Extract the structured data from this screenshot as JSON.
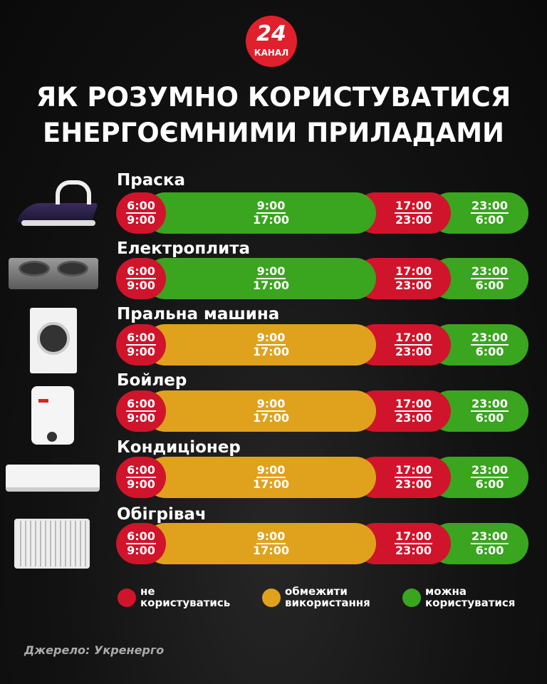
{
  "logo": {
    "number": "24",
    "text": "КАНАЛ"
  },
  "title": [
    "ЯК РОЗУМНО КОРИСТУВАТИСЯ",
    "ЕНЕРГОЄМНИМИ ПРИЛАДАМИ"
  ],
  "colors": {
    "red": "#d0142b",
    "amber": "#e0a21c",
    "green": "#3aa51f"
  },
  "rows": [
    {
      "name": "Праска",
      "icon": "iron",
      "segments": [
        {
          "from": "6:00",
          "to": "9:00",
          "status": "red"
        },
        {
          "from": "9:00",
          "to": "17:00",
          "status": "green"
        },
        {
          "from": "17:00",
          "to": "23:00",
          "status": "red"
        },
        {
          "from": "23:00",
          "to": "6:00",
          "status": "green"
        }
      ]
    },
    {
      "name": "Електроплита",
      "icon": "electric-stove",
      "segments": [
        {
          "from": "6:00",
          "to": "9:00",
          "status": "red"
        },
        {
          "from": "9:00",
          "to": "17:00",
          "status": "green"
        },
        {
          "from": "17:00",
          "to": "23:00",
          "status": "red"
        },
        {
          "from": "23:00",
          "to": "6:00",
          "status": "green"
        }
      ]
    },
    {
      "name": "Пральна машина",
      "icon": "washing-machine",
      "segments": [
        {
          "from": "6:00",
          "to": "9:00",
          "status": "red"
        },
        {
          "from": "9:00",
          "to": "17:00",
          "status": "amber"
        },
        {
          "from": "17:00",
          "to": "23:00",
          "status": "red"
        },
        {
          "from": "23:00",
          "to": "6:00",
          "status": "green"
        }
      ]
    },
    {
      "name": "Бойлер",
      "icon": "boiler",
      "segments": [
        {
          "from": "6:00",
          "to": "9:00",
          "status": "red"
        },
        {
          "from": "9:00",
          "to": "17:00",
          "status": "amber"
        },
        {
          "from": "17:00",
          "to": "23:00",
          "status": "red"
        },
        {
          "from": "23:00",
          "to": "6:00",
          "status": "green"
        }
      ]
    },
    {
      "name": "Кондиціонер",
      "icon": "air-conditioner",
      "segments": [
        {
          "from": "6:00",
          "to": "9:00",
          "status": "red"
        },
        {
          "from": "9:00",
          "to": "17:00",
          "status": "amber"
        },
        {
          "from": "17:00",
          "to": "23:00",
          "status": "red"
        },
        {
          "from": "23:00",
          "to": "6:00",
          "status": "green"
        }
      ]
    },
    {
      "name": "Обігрівач",
      "icon": "heater",
      "segments": [
        {
          "from": "6:00",
          "to": "9:00",
          "status": "red"
        },
        {
          "from": "9:00",
          "to": "17:00",
          "status": "amber"
        },
        {
          "from": "17:00",
          "to": "23:00",
          "status": "red"
        },
        {
          "from": "23:00",
          "to": "6:00",
          "status": "green"
        }
      ]
    }
  ],
  "legend": [
    {
      "status": "red",
      "line1": "не",
      "line2": "користуватись"
    },
    {
      "status": "amber",
      "line1": "обмежити",
      "line2": "використання"
    },
    {
      "status": "green",
      "line1": "можна",
      "line2": "користуватися"
    }
  ],
  "source": "Джерело: Укренерго"
}
